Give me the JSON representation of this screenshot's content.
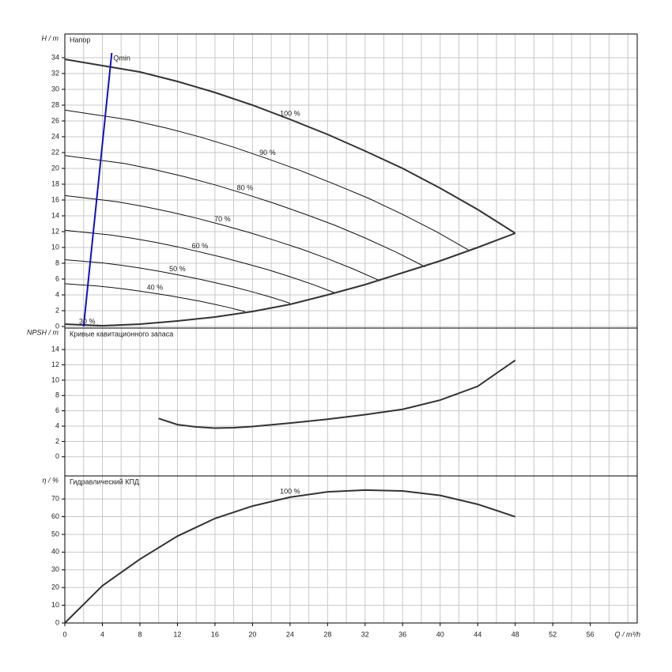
{
  "chart_data": [
    {
      "type": "line",
      "title": "Напор",
      "y_label": "H / m",
      "xlim": [
        0,
        61
      ],
      "ylim": [
        -0.2,
        37
      ],
      "yticks": [
        0,
        2,
        4,
        6,
        8,
        10,
        12,
        14,
        16,
        18,
        20,
        22,
        24,
        26,
        28,
        30,
        32,
        34
      ],
      "grid": true,
      "annotations": [
        "30 %"
      ],
      "series": [
        {
          "name": "100 %",
          "color": "#333333",
          "line_width": 2,
          "x": [
            0,
            4,
            8,
            12,
            16,
            20,
            24,
            28,
            32,
            36,
            40,
            44,
            48
          ],
          "values": [
            33.8,
            33,
            32.2,
            31,
            29.6,
            28,
            26.2,
            24.3,
            22.2,
            20,
            17.5,
            14.8,
            11.8
          ]
        },
        {
          "name": "90 %",
          "color": "#111111",
          "line_width": 1,
          "x": [
            0,
            3.6,
            7.2,
            10.8,
            14.4,
            18,
            21.6,
            25.2,
            28.8,
            32.4,
            36,
            39.6,
            43.2
          ],
          "values": [
            27.38,
            26.73,
            26.08,
            25.11,
            23.98,
            22.68,
            21.22,
            19.68,
            17.98,
            16.2,
            14.18,
            11.99,
            9.56
          ]
        },
        {
          "name": "80 %",
          "color": "#111111",
          "line_width": 1,
          "x": [
            0,
            3.2,
            6.4,
            9.6,
            12.8,
            16,
            19.2,
            22.4,
            25.6,
            28.8,
            32,
            35.2,
            38.4
          ],
          "values": [
            21.63,
            21.12,
            20.61,
            19.84,
            18.94,
            17.92,
            16.77,
            15.55,
            14.21,
            12.8,
            11.2,
            9.47,
            7.55
          ]
        },
        {
          "name": "70 %",
          "color": "#111111",
          "line_width": 1,
          "x": [
            0,
            2.8,
            5.6,
            8.4,
            11.2,
            14,
            16.8,
            19.6,
            22.4,
            25.2,
            28,
            30.8,
            33.6
          ],
          "values": [
            16.56,
            16.17,
            15.78,
            15.19,
            14.5,
            13.72,
            12.84,
            11.91,
            10.88,
            9.8,
            8.58,
            7.25,
            5.78
          ]
        },
        {
          "name": "60 %",
          "color": "#111111",
          "line_width": 1,
          "x": [
            0,
            2.4,
            4.8,
            7.2,
            9.6,
            12,
            14.4,
            16.8,
            19.2,
            21.6,
            24,
            26.4,
            28.8
          ],
          "values": [
            12.17,
            11.88,
            11.59,
            11.16,
            10.66,
            10.08,
            9.43,
            8.75,
            7.99,
            7.2,
            6.3,
            5.33,
            4.25
          ]
        },
        {
          "name": "50 %",
          "color": "#111111",
          "line_width": 1,
          "x": [
            0,
            2,
            4,
            6,
            8,
            10,
            12,
            14,
            16,
            18,
            20,
            22,
            24
          ],
          "values": [
            8.45,
            8.25,
            8.05,
            7.75,
            7.4,
            7,
            6.55,
            6.08,
            5.55,
            5,
            4.38,
            3.7,
            2.95
          ]
        },
        {
          "name": "40 %",
          "color": "#111111",
          "line_width": 1,
          "x": [
            0,
            1.6,
            3.2,
            4.8,
            6.4,
            8,
            9.6,
            11.2,
            12.8,
            14.4,
            16,
            17.6,
            19.2
          ],
          "values": [
            5.41,
            5.28,
            5.15,
            4.96,
            4.74,
            4.48,
            4.19,
            3.89,
            3.55,
            3.2,
            2.8,
            2.37,
            1.89
          ]
        },
        {
          "color": "#333333",
          "line_width": 2,
          "x": [
            0,
            4,
            8,
            12,
            16,
            20,
            24,
            28,
            32,
            36,
            40,
            44,
            48
          ],
          "values": [
            0.3,
            0.1,
            0.3,
            0.7,
            1.2,
            1.9,
            2.8,
            4,
            5.3,
            6.8,
            8.3,
            10,
            11.8
          ]
        },
        {
          "name": "Qmin",
          "color": "#1010c8",
          "line_width": 2,
          "x": [
            2,
            5
          ],
          "values": [
            0,
            34.6
          ]
        }
      ]
    },
    {
      "type": "line",
      "title": "Кривые кавитационного запаса",
      "y_label": "NPSH / m",
      "xlim": [
        0,
        61
      ],
      "ylim": [
        -2.5,
        16.8
      ],
      "yticks": [
        0,
        2,
        4,
        6,
        8,
        10,
        12,
        14
      ],
      "grid": true,
      "series": [
        {
          "color": "#333333",
          "line_width": 2,
          "x": [
            10,
            12,
            14,
            16,
            18,
            20,
            24,
            28,
            32,
            36,
            40,
            44,
            48
          ],
          "values": [
            5,
            4.2,
            3.9,
            3.75,
            3.8,
            3.95,
            4.4,
            4.9,
            5.5,
            6.2,
            7.4,
            9.2,
            12.6
          ]
        }
      ]
    },
    {
      "type": "line",
      "title": "Гидравлический КПД",
      "y_label": "η / %",
      "x_label": "Q / m³/h",
      "xlim": [
        0,
        61
      ],
      "ylim": [
        0,
        83
      ],
      "yticks": [
        0,
        10,
        20,
        30,
        40,
        50,
        60,
        70
      ],
      "xticks": [
        0,
        4,
        8,
        12,
        16,
        20,
        24,
        28,
        32,
        36,
        40,
        44,
        48,
        52,
        56
      ],
      "x_grid": [
        0,
        2,
        4,
        6,
        8,
        10,
        12,
        14,
        16,
        18,
        20,
        22,
        24,
        26,
        28,
        30,
        32,
        34,
        36,
        38,
        40,
        42,
        44,
        46,
        48,
        50,
        52,
        54,
        56,
        58,
        60
      ],
      "grid": true,
      "series": [
        {
          "name": "100 %",
          "color": "#333333",
          "line_width": 2,
          "x": [
            0,
            4,
            8,
            12,
            16,
            20,
            24,
            28,
            32,
            36,
            40,
            44,
            48
          ],
          "values": [
            0,
            21,
            36,
            49,
            59,
            66,
            71,
            74,
            75,
            74.5,
            72,
            67,
            60
          ]
        }
      ]
    }
  ]
}
